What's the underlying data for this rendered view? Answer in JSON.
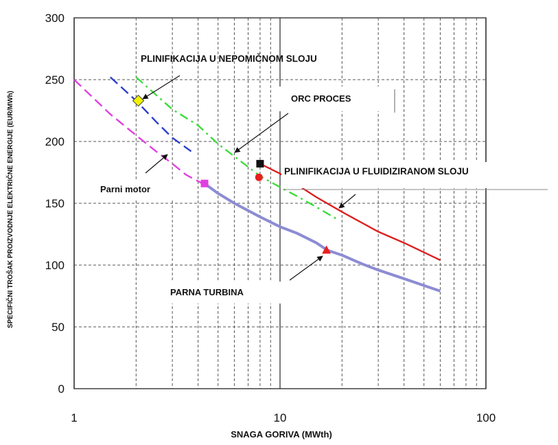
{
  "chart_data": {
    "type": "line",
    "title": "",
    "xlabel": "SNAGA GORIVA (MWth)",
    "ylabel": "SPECIFIČNI TROŠAK PROIZVODNJE ELEKTRIČNE ENERGIJE (EUR/MWh)",
    "x_scale": "log",
    "xlim": [
      1,
      100
    ],
    "ylim": [
      0,
      300
    ],
    "x_ticks": [
      1,
      10,
      100
    ],
    "x_tick_labels": [
      "1",
      "10",
      "100"
    ],
    "y_ticks": [
      0,
      50,
      100,
      150,
      200,
      250,
      300
    ],
    "y_tick_labels": [
      "0",
      "50",
      "100",
      "150",
      "200",
      "250",
      "300"
    ],
    "grid": true,
    "series": [
      {
        "name": "Parni motor",
        "color": "#e040e0",
        "style": "dashed",
        "x": [
          1,
          1.5,
          2,
          2.5,
          3,
          3.5,
          4.2
        ],
        "y": [
          250,
          222,
          205,
          192,
          182,
          173,
          166
        ],
        "marker": {
          "shape": "square",
          "x": 4.3,
          "y": 166,
          "color": "#e040e0"
        }
      },
      {
        "name": "PLINIFIKACIJA U NEPOMIČNOM SLOJU",
        "color": "#2b3fcc",
        "style": "dashed",
        "x": [
          1.5,
          2,
          2.5,
          3,
          3.7
        ],
        "y": [
          252,
          233,
          216,
          203,
          192
        ],
        "marker": {
          "shape": "diamond",
          "x": 2.05,
          "y": 233,
          "color": "#f2f200"
        }
      },
      {
        "name": "ORC PROCES",
        "color": "#3ddc3d",
        "style": "dashdot",
        "x": [
          2,
          3,
          4,
          5,
          6,
          8,
          10,
          12,
          15,
          19
        ],
        "y": [
          252,
          226,
          213,
          198,
          188,
          172,
          163,
          156,
          147,
          137
        ],
        "marker": {
          "shape": "circle",
          "x": 7.9,
          "y": 171,
          "color": "#e82020"
        }
      },
      {
        "name": "PLINIFIKACIJA U FLUIDIZIRANOM SLOJU",
        "color": "#dd2020",
        "style": "solid",
        "x": [
          8,
          10,
          15,
          20,
          30,
          40,
          60
        ],
        "y": [
          182,
          174,
          155,
          143,
          127,
          118,
          104
        ],
        "marker": {
          "shape": "square",
          "x": 8,
          "y": 182,
          "color": "#111111"
        }
      },
      {
        "name": "PARNA TURBINA",
        "color": "#8c8cd4",
        "style": "solid",
        "x": [
          4.3,
          5,
          6,
          8,
          10,
          12,
          15,
          17,
          20,
          25,
          30,
          40,
          60
        ],
        "y": [
          166,
          158,
          150,
          139,
          131,
          126,
          118,
          112,
          108,
          101,
          96,
          89,
          79
        ],
        "marker": {
          "shape": "triangle",
          "x": 16.8,
          "y": 112,
          "color": "#e82020"
        }
      }
    ],
    "annotations": [
      {
        "text": "PLINIFIKACIJA U NEPOMIČNOM SLOJU"
      },
      {
        "text": "ORC PROCES"
      },
      {
        "text": "PLINIFIKACIJA U FLUIDIZIRANOM SLOJU"
      },
      {
        "text": "Parni motor"
      },
      {
        "text": "PARNA TURBINA"
      }
    ]
  }
}
